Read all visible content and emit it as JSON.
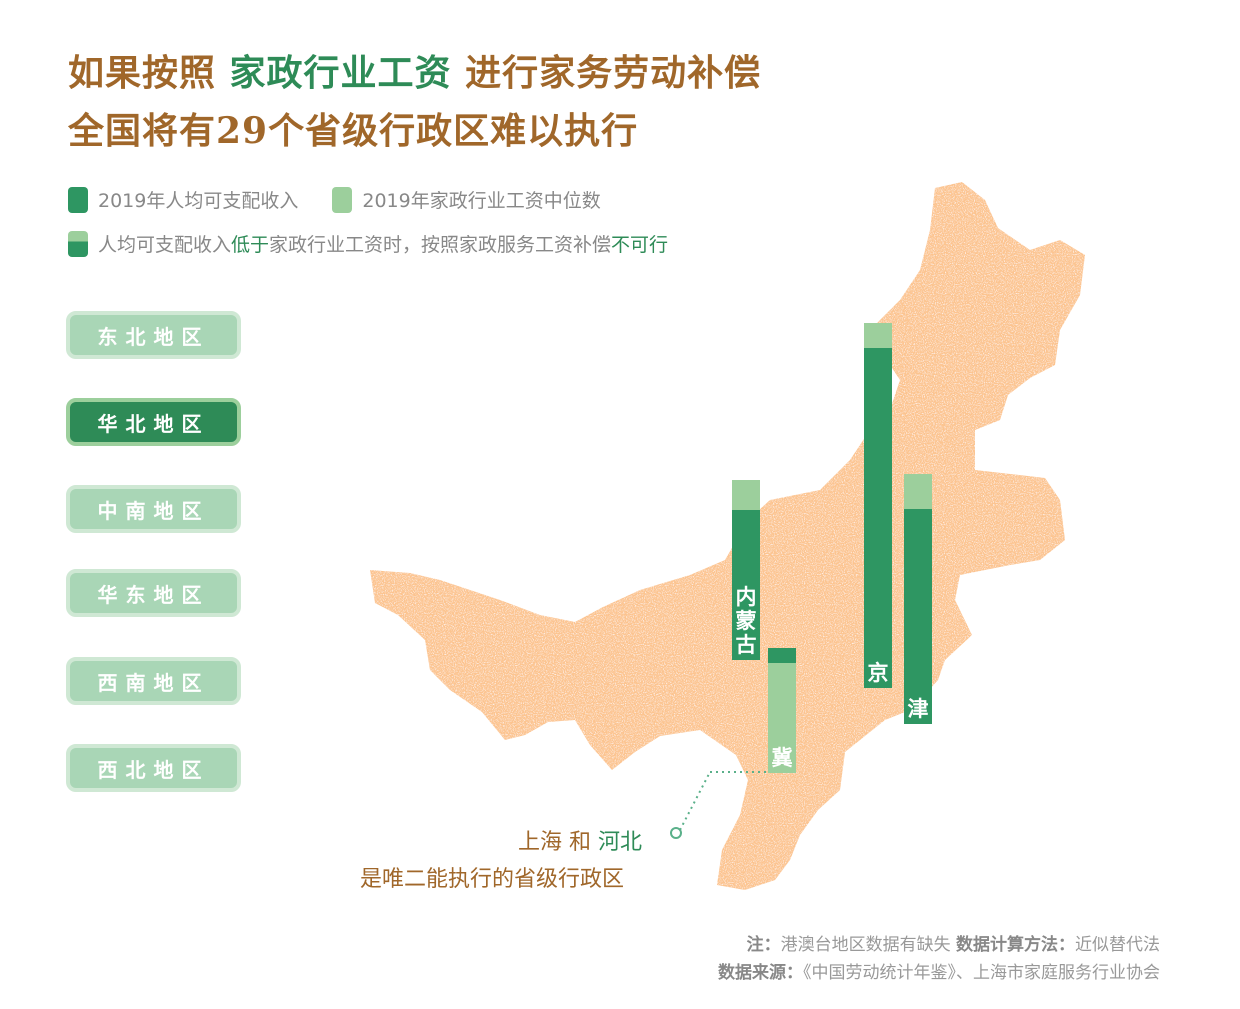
{
  "title": {
    "line1_a": "如果按照 ",
    "line1_hl": "家政行业工资",
    "line1_b": " 进行家务劳动补偿",
    "line2": "全国将有29个省级行政区难以执行"
  },
  "legend": {
    "income": "2019年人均可支配收入",
    "wage": "2019年家政行业工资中位数",
    "note_a": "人均可支配收入",
    "note_hl1": "低于",
    "note_b": "家政行业工资时，按照家政服务工资补偿",
    "note_hl2": "不可行"
  },
  "regions": [
    "东北地区",
    "华北地区",
    "中南地区",
    "华东地区",
    "西南地区",
    "西北地区"
  ],
  "active_region": "华北地区",
  "annotation": {
    "line1_a": "上海 和 ",
    "line1_hl": "河北",
    "line2": "是唯二能执行的省级行政区"
  },
  "footnote": {
    "note_label": "注：",
    "note_text": "港澳台地区数据有缺失",
    "method_label": "数据计算方法：",
    "method_text": "近似替代法",
    "source_label": "数据来源：",
    "source_text": "《中国劳动统计年鉴》、上海市家庭服务行业协会"
  },
  "colors": {
    "title": "#a0672a",
    "income": "#2e9662",
    "wage": "#9ccf9c",
    "map": "#fcc48f"
  },
  "chart_data": {
    "type": "bar",
    "categories": [
      "内蒙古",
      "冀",
      "京",
      "津"
    ],
    "series": [
      {
        "name": "2019年人均可支配收入",
        "values": [
          30,
          25,
          68,
          43
        ]
      },
      {
        "name": "2019年家政行业工资中位数",
        "values": [
          36,
          22,
          73,
          50
        ]
      }
    ]
  }
}
